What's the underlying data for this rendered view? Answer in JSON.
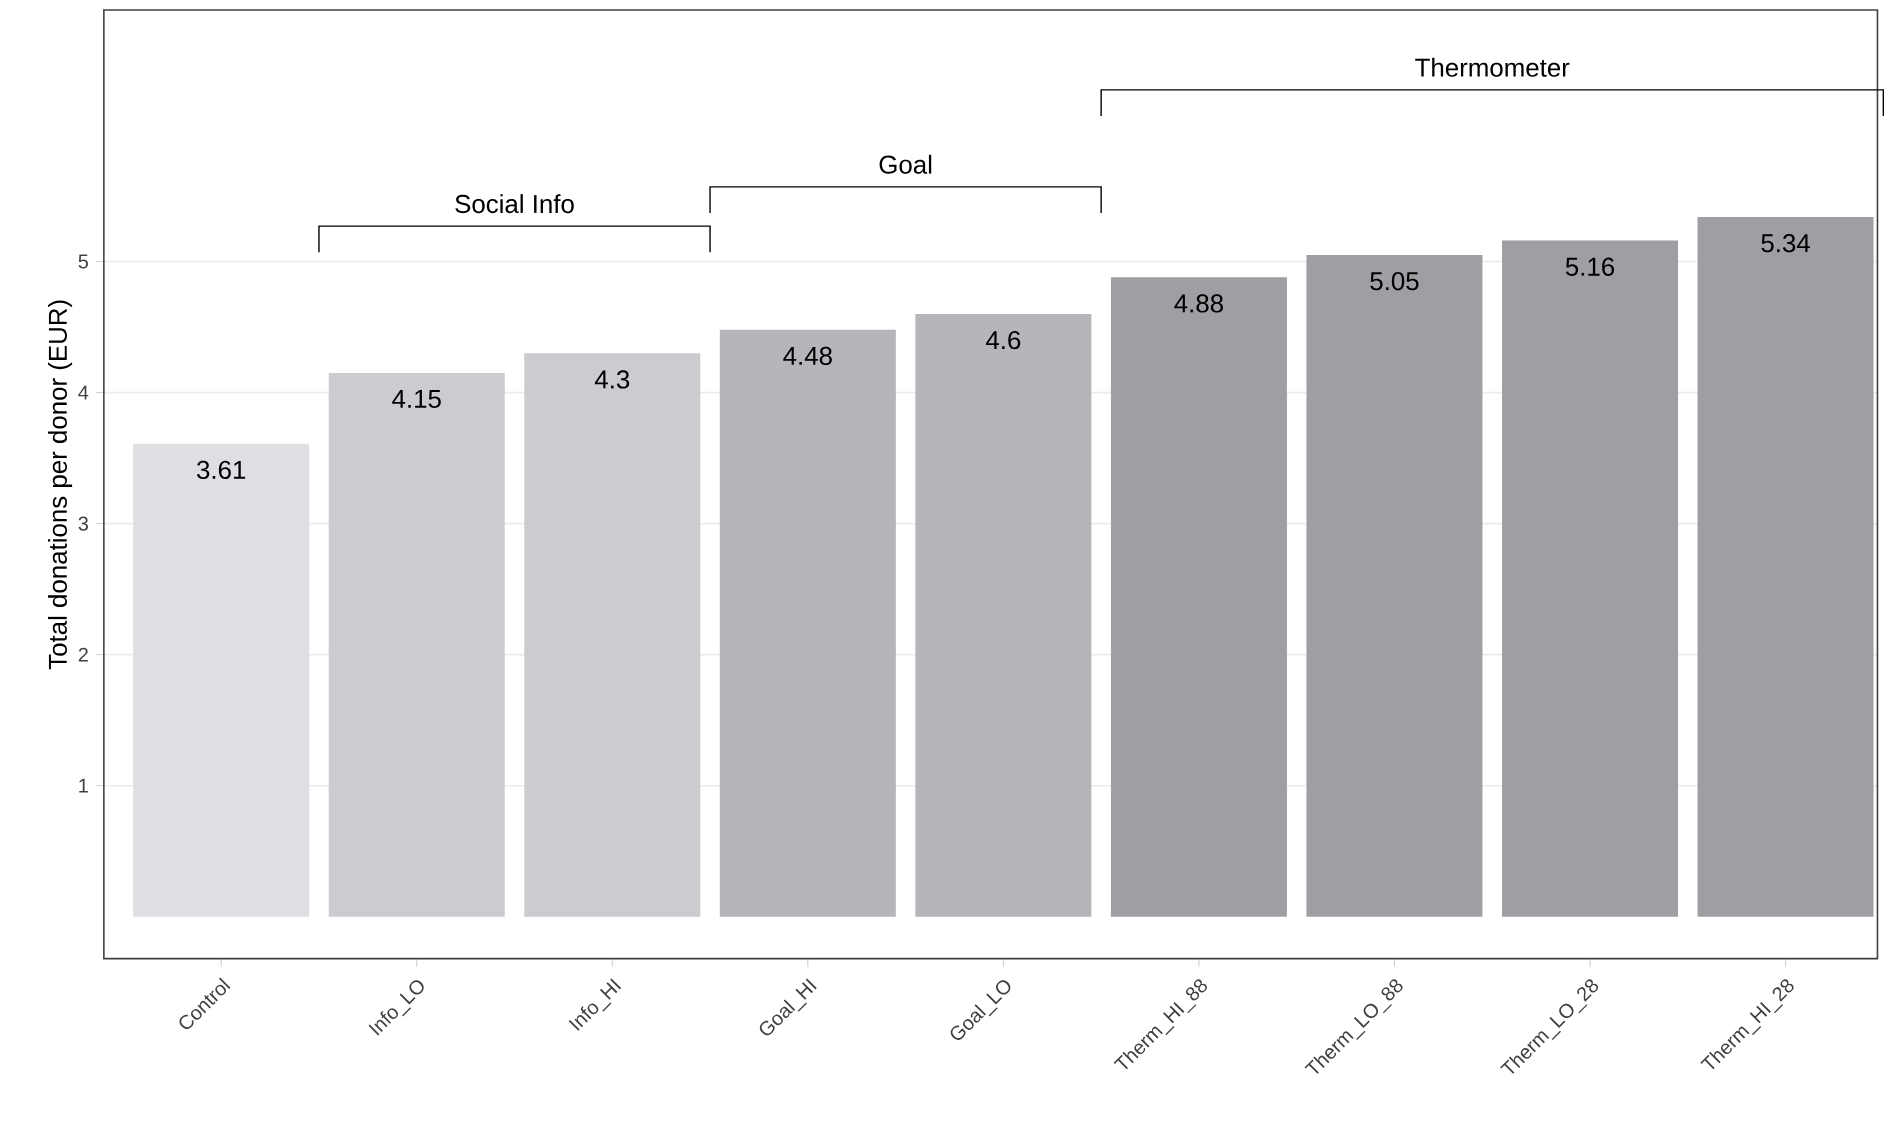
{
  "chart_data": {
    "type": "bar",
    "ylabel": "Total donations per donor (EUR)",
    "categories": [
      "Control",
      "Info_LO",
      "Info_HI",
      "Goal_HI",
      "Goal_LO",
      "Therm_HI_88",
      "Therm_LO_88",
      "Therm_LO_28",
      "Therm_HI_28"
    ],
    "values": [
      3.61,
      4.15,
      4.3,
      4.48,
      4.6,
      4.88,
      5.05,
      5.16,
      5.34
    ],
    "colors": [
      "#dedee3",
      "#cbcbd0",
      "#cbcbd0",
      "#b5b5ba",
      "#b5b5ba",
      "#9e9ea3",
      "#9e9ea3",
      "#9e9ea3",
      "#9e9ea3"
    ],
    "ylim": [
      -0.32,
      6.92
    ],
    "yticks": [
      1,
      2,
      3,
      4,
      5
    ],
    "grid": "y",
    "data_labels": true,
    "annotations": [
      "Social Info",
      "Goal",
      "Thermometer"
    ]
  }
}
